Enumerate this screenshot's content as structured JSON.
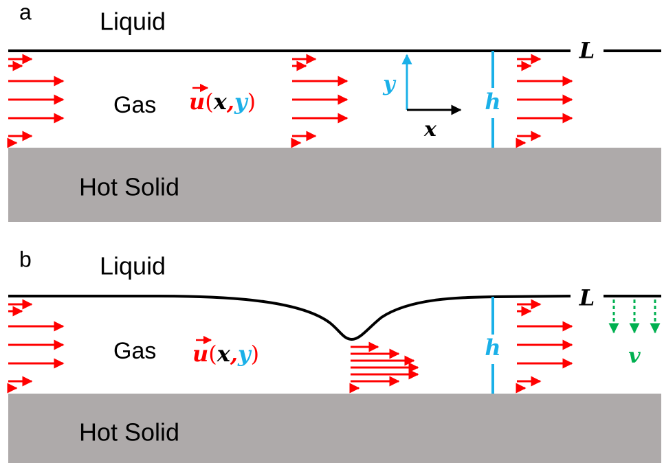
{
  "panels": [
    {
      "label": "a",
      "liquid": "Liquid",
      "gas": "Gas",
      "solid": "Hot Solid",
      "interface_label": "L",
      "height_label": "h",
      "velocity": {
        "symbol": "u",
        "open": "(",
        "x": "x",
        "comma": ",",
        "y": "y",
        "close": ")"
      },
      "axes": {
        "y": "y",
        "x": "x"
      }
    },
    {
      "label": "b",
      "liquid": "Liquid",
      "gas": "Gas",
      "solid": "Hot Solid",
      "interface_label": "L",
      "height_label": "h",
      "velocity": {
        "symbol": "u",
        "open": "(",
        "x": "x",
        "comma": ",",
        "y": "y",
        "close": ")"
      },
      "suction_label": "v"
    }
  ]
}
